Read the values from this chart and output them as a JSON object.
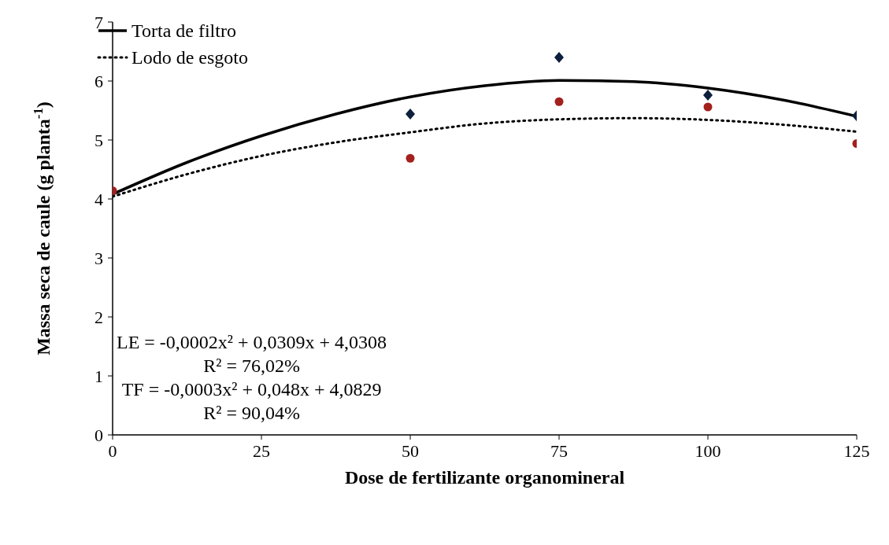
{
  "chart_data": {
    "type": "scatter",
    "xlabel": "Dose de fertilizante organomineral",
    "ylabel": "Massa seca de caule (g planta$^{-1}$)",
    "xlim": [
      0,
      125
    ],
    "xticks": [
      0,
      25,
      50,
      75,
      100,
      125
    ],
    "ylim": [
      0,
      7
    ],
    "yticks": [
      0,
      1,
      2,
      3,
      4,
      5,
      6,
      7
    ],
    "grid": false,
    "legend": "top left",
    "series": [
      {
        "name": "Torta de filtro",
        "type": "line",
        "color": "#000000",
        "line_style": "solid",
        "marker": "none",
        "x": [
          0,
          12.5,
          25,
          37.5,
          50,
          62.5,
          75,
          87.5,
          100,
          112.5,
          125
        ],
        "values": [
          4.08,
          4.62,
          5.07,
          5.44,
          5.73,
          5.92,
          6.01,
          5.99,
          5.88,
          5.68,
          5.4
        ]
      },
      {
        "name": "Lodo de esgoto",
        "type": "line",
        "color": "#000000",
        "line_style": "dotted",
        "marker": "none",
        "x": [
          0,
          12.5,
          25,
          37.5,
          50,
          62.5,
          75,
          87.5,
          100,
          112.5,
          125
        ],
        "values": [
          4.04,
          4.42,
          4.73,
          4.96,
          5.13,
          5.28,
          5.35,
          5.37,
          5.34,
          5.26,
          5.14
        ]
      },
      {
        "type": "scatter",
        "color": "#0d1f3c",
        "marker": "diamond",
        "x": [
          50,
          75,
          100,
          125
        ],
        "values": [
          5.44,
          6.4,
          5.76,
          5.41
        ]
      },
      {
        "type": "scatter",
        "color": "#a3201d",
        "marker": "circle",
        "x": [
          0,
          50,
          75,
          100,
          125
        ],
        "values": [
          4.14,
          4.69,
          5.65,
          5.56,
          4.94
        ]
      }
    ],
    "annotations": [
      "LE = -0,0002x² + 0,0309x + 4,0308",
      "R² = 76,02%",
      "TF = -0,0003x² + 0,048x + 4,0829",
      "R² = 90,04%"
    ]
  }
}
